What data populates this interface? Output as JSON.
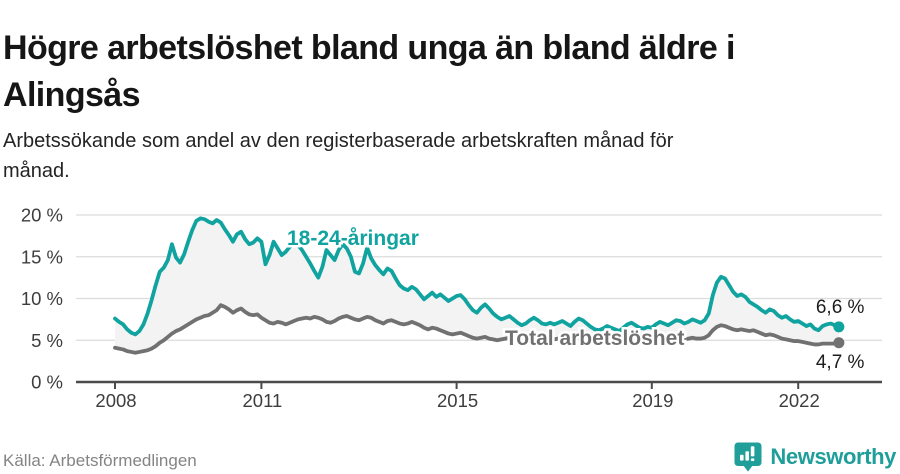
{
  "header": {
    "title_lines": [
      "Högre arbetslöshet bland unga än bland äldre i",
      "Alingsås"
    ],
    "subtitle_lines": [
      "Arbetssökande som andel av den registerbaserade arbetskraften månad för",
      "månad."
    ]
  },
  "chart_data": {
    "type": "line",
    "title": "Högre arbetslöshet bland unga än bland äldre i Alingsås",
    "subtitle": "Arbetssökande som andel av den registerbaserade arbetskraften månad för månad.",
    "x_axis": {
      "start_year": 2008,
      "start_month": 1,
      "frequency": "monthly",
      "tick_values": [
        2008,
        2011,
        2015,
        2019,
        2022
      ],
      "tick_labels": [
        "2008",
        "2011",
        "2015",
        "2019",
        "2022"
      ]
    },
    "y_axis": {
      "unit": "%",
      "ylim": [
        0,
        21
      ],
      "tick_values": [
        0,
        5,
        10,
        15,
        20
      ],
      "tick_labels": [
        "0 %",
        "5 %",
        "10 %",
        "15 %",
        "20 %"
      ]
    },
    "grid": "horizontal",
    "area_fill_color": "#f3f3f3",
    "series": [
      {
        "name": "18-24-åringar",
        "color": "#10a39f",
        "end_label": "6,6 %",
        "values": [
          7.6,
          7.2,
          6.9,
          6.3,
          5.9,
          5.7,
          6.1,
          6.9,
          8.2,
          9.8,
          11.6,
          13.2,
          13.7,
          14.6,
          16.5,
          14.9,
          14.3,
          15.3,
          16.8,
          18.2,
          19.3,
          19.6,
          19.5,
          19.2,
          19.0,
          19.4,
          19.1,
          18.3,
          17.6,
          16.8,
          17.7,
          18.0,
          17.1,
          16.5,
          16.7,
          17.2,
          16.8,
          14.1,
          15.2,
          16.8,
          16.0,
          15.2,
          15.6,
          16.2,
          16.6,
          16.4,
          15.8,
          15.0,
          14.2,
          13.3,
          12.5,
          13.8,
          15.8,
          15.2,
          14.6,
          15.8,
          16.5,
          16.0,
          15.0,
          13.2,
          13.0,
          14.2,
          16.1,
          14.8,
          14.0,
          13.4,
          12.9,
          13.6,
          13.3,
          12.4,
          11.6,
          11.2,
          11.0,
          11.4,
          11.1,
          10.5,
          9.9,
          10.3,
          10.7,
          10.2,
          10.5,
          10.1,
          9.7,
          10.0,
          10.3,
          10.4,
          9.9,
          9.2,
          8.6,
          8.3,
          8.9,
          9.3,
          8.8,
          8.2,
          7.8,
          7.5,
          7.7,
          7.9,
          7.5,
          7.1,
          6.8,
          7.0,
          7.4,
          7.7,
          7.4,
          7.0,
          6.9,
          7.1,
          6.9,
          7.1,
          7.3,
          7.0,
          6.7,
          7.2,
          7.6,
          7.4,
          7.0,
          6.6,
          6.3,
          6.2,
          6.4,
          6.7,
          6.5,
          6.3,
          6.1,
          6.5,
          6.9,
          7.1,
          6.8,
          6.5,
          6.4,
          6.6,
          6.5,
          6.9,
          7.2,
          7.0,
          6.8,
          7.1,
          7.4,
          7.3,
          7.0,
          7.2,
          7.5,
          7.3,
          7.1,
          7.4,
          8.2,
          10.4,
          11.9,
          12.6,
          12.4,
          11.6,
          10.8,
          10.3,
          10.5,
          10.2,
          9.6,
          9.3,
          9.0,
          8.6,
          8.3,
          8.7,
          8.5,
          8.0,
          7.7,
          7.9,
          7.5,
          7.2,
          7.3,
          7.0,
          6.7,
          6.9,
          6.4,
          6.2,
          6.7,
          6.9,
          7.0,
          6.8,
          6.6
        ]
      },
      {
        "name": "Total arbetslöshet",
        "color": "#717171",
        "end_label": "4,7 %",
        "values": [
          4.1,
          4.0,
          3.9,
          3.7,
          3.6,
          3.5,
          3.6,
          3.7,
          3.8,
          4.0,
          4.3,
          4.7,
          5.0,
          5.4,
          5.8,
          6.1,
          6.3,
          6.6,
          6.9,
          7.2,
          7.5,
          7.7,
          7.9,
          8.0,
          8.3,
          8.6,
          9.2,
          9.0,
          8.7,
          8.3,
          8.6,
          8.8,
          8.4,
          8.1,
          8.0,
          8.1,
          7.7,
          7.4,
          7.1,
          7.0,
          7.2,
          7.1,
          6.9,
          7.1,
          7.3,
          7.5,
          7.6,
          7.7,
          7.6,
          7.8,
          7.7,
          7.5,
          7.2,
          7.1,
          7.3,
          7.6,
          7.8,
          7.9,
          7.7,
          7.5,
          7.4,
          7.6,
          7.8,
          7.7,
          7.4,
          7.2,
          7.0,
          7.3,
          7.4,
          7.2,
          7.0,
          6.9,
          7.0,
          7.2,
          7.0,
          6.8,
          6.5,
          6.3,
          6.5,
          6.4,
          6.2,
          6.0,
          5.8,
          5.7,
          5.8,
          5.9,
          5.7,
          5.5,
          5.3,
          5.2,
          5.3,
          5.4,
          5.2,
          5.1,
          5.0,
          5.1,
          5.2,
          5.3,
          5.2,
          5.1,
          5.0,
          5.1,
          5.2,
          5.3,
          5.2,
          5.1,
          5.0,
          5.1,
          5.1,
          5.2,
          5.3,
          5.2,
          5.0,
          5.1,
          5.2,
          5.1,
          5.0,
          4.9,
          4.8,
          4.9,
          4.9,
          5.0,
          4.9,
          4.8,
          4.7,
          4.8,
          4.9,
          5.0,
          4.9,
          4.8,
          4.8,
          4.9,
          4.9,
          5.0,
          5.1,
          5.0,
          4.9,
          5.0,
          5.2,
          5.2,
          5.1,
          5.2,
          5.3,
          5.2,
          5.2,
          5.3,
          5.6,
          6.2,
          6.6,
          6.8,
          6.7,
          6.5,
          6.3,
          6.2,
          6.3,
          6.2,
          6.1,
          6.2,
          6.0,
          5.8,
          5.6,
          5.7,
          5.6,
          5.4,
          5.2,
          5.1,
          5.0,
          4.9,
          4.9,
          4.8,
          4.7,
          4.6,
          4.5,
          4.5,
          4.6,
          4.6,
          4.6,
          4.6,
          4.7
        ]
      }
    ]
  },
  "footer": {
    "source": "Källa: Arbetsförmedlingen"
  },
  "branding": {
    "logo_text": "Newsworthy",
    "logo_color": "#1f9e9a",
    "logo_icon": "bar-chart-pin-icon"
  }
}
